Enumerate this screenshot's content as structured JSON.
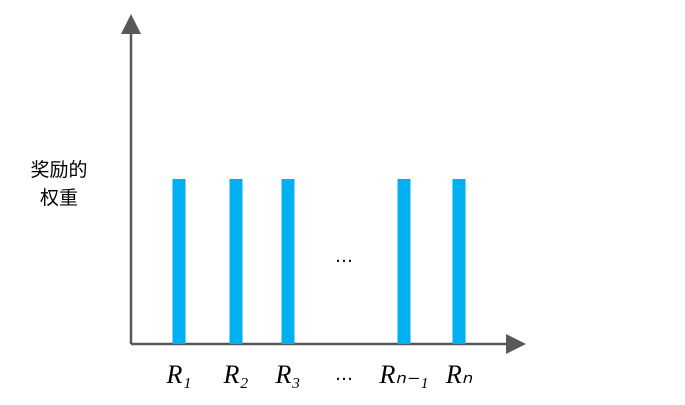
{
  "chart_data": {
    "type": "bar",
    "ylabel": "奖励的权重",
    "categories": [
      "R₁",
      "R₂",
      "R₃",
      "…",
      "Rₙ₋₁",
      "Rₙ"
    ],
    "values": [
      1,
      1,
      1,
      null,
      1,
      1
    ],
    "color": "#00b0f0",
    "ylim": [
      0,
      2
    ],
    "annotation": "…"
  }
}
